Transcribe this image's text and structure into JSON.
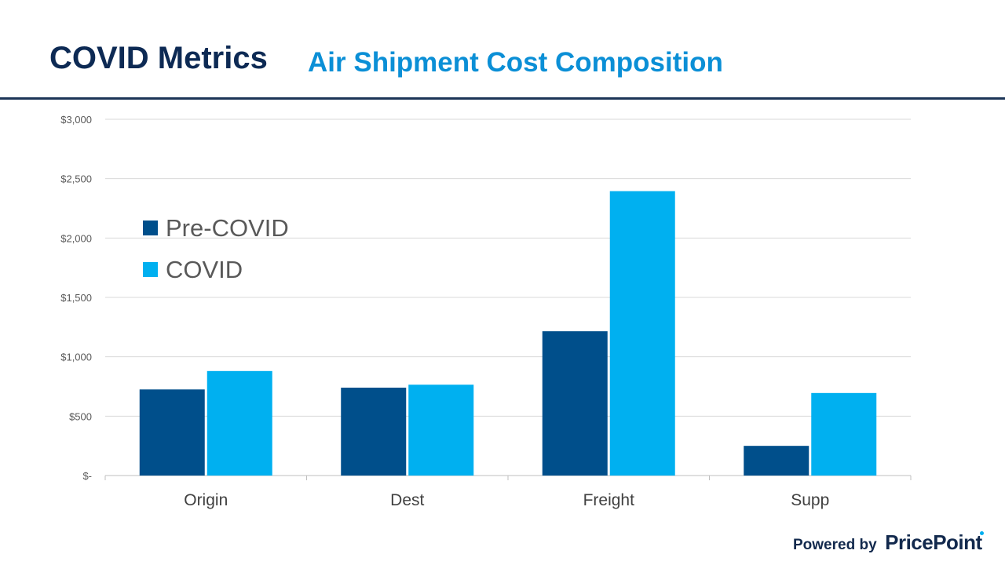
{
  "header": {
    "title": "COVID Metrics",
    "subtitle": "Air Shipment Cost Composition"
  },
  "branding": {
    "powered_by": "Powered by",
    "brand": "PricePoint"
  },
  "colors": {
    "title": "#0d2a54",
    "subtitle": "#0b8fd6",
    "pre_covid": "#004f8b",
    "covid": "#00b0f0"
  },
  "chart_data": {
    "type": "bar",
    "categories": [
      "Origin",
      "Dest",
      "Freight",
      "Supp"
    ],
    "series": [
      {
        "name": "Pre-COVID",
        "color": "#004f8b",
        "values": [
          725,
          740,
          1215,
          250
        ]
      },
      {
        "name": "COVID",
        "color": "#00b0f0",
        "values": [
          880,
          765,
          2395,
          695
        ]
      }
    ],
    "ylim": [
      0,
      3000
    ],
    "yticks": [
      0,
      500,
      1000,
      1500,
      2000,
      2500,
      3000
    ],
    "ytick_labels": [
      "$-",
      "$500",
      "$1,000",
      "$1,500",
      "$2,000",
      "$2,500",
      "$3,000"
    ],
    "grid": true,
    "legend_position": "top-left"
  }
}
